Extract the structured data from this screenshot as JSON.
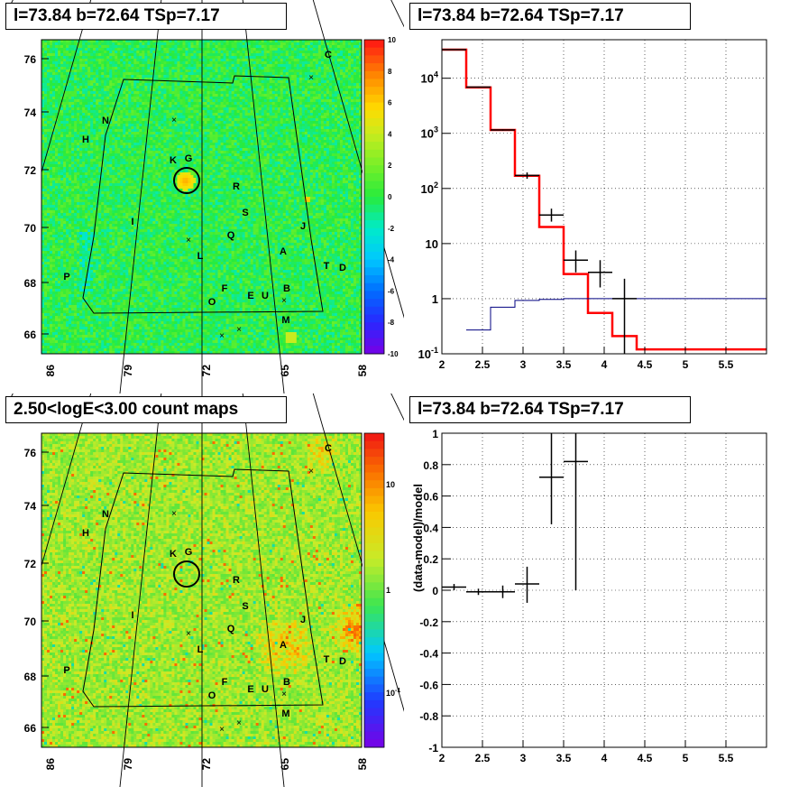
{
  "panels": {
    "tl_title": "l=73.84 b=72.64 TSp=7.17",
    "tr_title": "l=73.84 b=72.64 TSp=7.17",
    "bl_title": "2.50<logE<3.00 count maps",
    "br_title": "l=73.84 b=72.64 TSp=7.17"
  },
  "chart_data": [
    {
      "type": "heatmap",
      "title": "l=73.84 b=72.64 TSp=7.17",
      "x_ticks": [
        "86",
        "79",
        "72",
        "65",
        "58"
      ],
      "y_ticks": [
        "76",
        "74",
        "72",
        "70",
        "68",
        "66"
      ],
      "colorbar_ticks": [
        "10",
        "8",
        "6",
        "4",
        "2",
        "0",
        "-2",
        "-4",
        "-6",
        "-8",
        "-10"
      ],
      "colorbar_range": [
        -10,
        10
      ],
      "source_labels": [
        "C",
        "N",
        "H",
        "K",
        "G",
        "R",
        "S",
        "I",
        "J",
        "Q",
        "L",
        "A",
        "T",
        "D",
        "P",
        "F",
        "E",
        "U",
        "B",
        "O",
        "M"
      ],
      "colors": {
        "background": "#3fe83f",
        "hot": "#ff6a00",
        "cool": "#20d0e0"
      }
    },
    {
      "type": "line",
      "title": "l=73.84 b=72.64 TSp=7.17",
      "xlim": [
        2.0,
        6.0
      ],
      "ylog": true,
      "ylim": [
        0.1,
        50000
      ],
      "x_ticks": [
        "2",
        "2.5",
        "3",
        "3.5",
        "4",
        "4.5",
        "5",
        "5.5"
      ],
      "y_ticks": [
        "10^-1",
        "1",
        "10",
        "10^2",
        "10^3",
        "10^4"
      ],
      "series": [
        {
          "kind": "step",
          "color": "#ff0000",
          "edges": [
            2.0,
            2.3,
            2.6,
            2.9,
            3.2,
            3.5,
            3.8,
            4.1,
            4.4,
            6.0
          ],
          "values": [
            33000,
            6800,
            1150,
            170,
            20,
            2.8,
            0.55,
            0.21,
            0.12
          ]
        },
        {
          "kind": "step",
          "color": "#000080",
          "edges": [
            2.3,
            2.6,
            2.9,
            3.2,
            3.5,
            6.0
          ],
          "values": [
            0.27,
            0.7,
            0.93,
            0.97,
            1.0
          ]
        },
        {
          "kind": "points",
          "color": "#000000",
          "x": [
            2.15,
            2.45,
            2.75,
            3.05,
            3.35,
            3.65,
            3.95,
            4.25
          ],
          "y": [
            33000,
            6900,
            1150,
            172,
            33,
            5,
            3,
            1
          ],
          "ylo": [
            32500,
            6750,
            1120,
            150,
            25,
            3,
            1.6,
            0.1
          ],
          "yhi": [
            33500,
            7050,
            1180,
            195,
            43,
            7.5,
            5,
            2.3
          ]
        }
      ]
    },
    {
      "type": "heatmap",
      "title": "2.50<logE<3.00 count maps",
      "x_ticks": [
        "86",
        "79",
        "72",
        "65",
        "58"
      ],
      "y_ticks": [
        "76",
        "74",
        "72",
        "70",
        "68",
        "66"
      ],
      "colorbar_ticks": [
        "10",
        "1",
        "10^-1"
      ],
      "colorbar_range": [
        0.03,
        30
      ],
      "source_labels": [
        "C",
        "N",
        "H",
        "K",
        "G",
        "R",
        "S",
        "I",
        "J",
        "Q",
        "L",
        "A",
        "T",
        "D",
        "P",
        "F",
        "E",
        "U",
        "B",
        "O",
        "M"
      ],
      "colors": {
        "background": "#b8e830",
        "hot": "#f03020"
      }
    },
    {
      "type": "scatter",
      "title": "l=73.84 b=72.64 TSp=7.17",
      "ylabel": "(data-model)/model",
      "xlim": [
        2.0,
        6.0
      ],
      "ylim": [
        -1.0,
        1.0
      ],
      "x_ticks": [
        "2",
        "2.5",
        "3",
        "3.5",
        "4",
        "4.5",
        "5",
        "5.5"
      ],
      "y_ticks": [
        "1",
        "0.8",
        "0.6",
        "0.4",
        "0.2",
        "0",
        "-0.2",
        "-0.4",
        "-0.6",
        "-0.8",
        "-1"
      ],
      "points": {
        "x": [
          2.15,
          2.45,
          2.75,
          3.05,
          3.35,
          3.65
        ],
        "xerr": [
          0.15,
          0.15,
          0.15,
          0.15,
          0.15,
          0.15
        ],
        "y": [
          0.02,
          -0.01,
          -0.01,
          0.04,
          0.72,
          0.82
        ],
        "ylo": [
          0.0,
          -0.03,
          -0.05,
          -0.08,
          0.42,
          0.0
        ],
        "yhi": [
          0.04,
          0.01,
          0.03,
          0.15,
          1.0,
          1.0
        ]
      }
    }
  ]
}
